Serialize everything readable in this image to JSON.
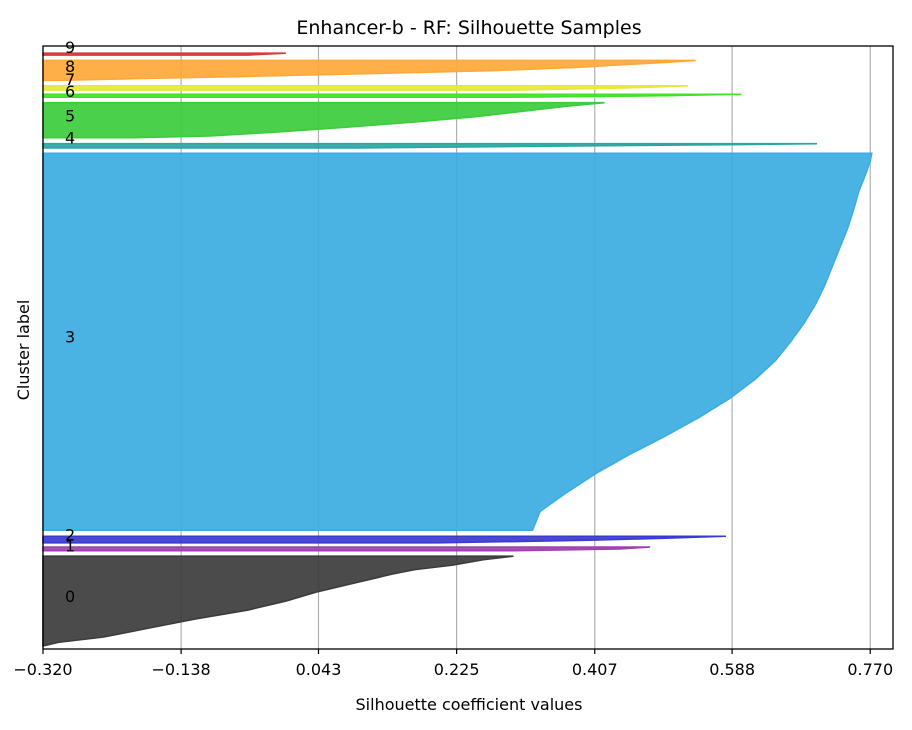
{
  "chart_data": {
    "type": "area",
    "title": "Enhancer-b - RF: Silhouette Samples",
    "xlabel": "Silhouette coefficient values",
    "ylabel": "Cluster label",
    "xlim": [
      -0.32,
      0.8
    ],
    "ylim": [
      0,
      100
    ],
    "xticks": [
      -0.32,
      -0.138,
      0.043,
      0.225,
      0.407,
      0.588,
      0.77
    ],
    "xtick_labels": [
      "−0.320",
      "−0.138",
      "0.043",
      "0.225",
      "0.407",
      "0.588",
      "0.770"
    ],
    "x_grid": true,
    "colors": {
      "0": "#3c3c3c",
      "1": "#a040b0",
      "2": "#3a3ad0",
      "3": "#3badE2",
      "4": "#2aa8a0",
      "5": "#3ccc3c",
      "6": "#44e02c",
      "7": "#e8e83c",
      "8": "#ffa838",
      "9": "#d83a3a"
    },
    "clusters": [
      {
        "label": "0",
        "y_lower": 0.5,
        "y_upper": 15.4,
        "max": 0.3,
        "profile": [
          [
            0.0,
            0.3
          ],
          [
            0.04,
            0.26
          ],
          [
            0.1,
            0.22
          ],
          [
            0.15,
            0.17
          ],
          [
            0.2,
            0.14
          ],
          [
            0.3,
            0.09
          ],
          [
            0.4,
            0.04
          ],
          [
            0.5,
            0.0
          ],
          [
            0.6,
            -0.05
          ],
          [
            0.7,
            -0.12
          ],
          [
            0.8,
            -0.18
          ],
          [
            0.9,
            -0.24
          ],
          [
            0.96,
            -0.3
          ],
          [
            1.0,
            -0.32
          ]
        ]
      },
      {
        "label": "1",
        "y_lower": 16.3,
        "y_upper": 16.9,
        "max": 0.48,
        "profile": [
          [
            0.0,
            0.48
          ],
          [
            0.5,
            0.44
          ],
          [
            1.0,
            0.3
          ]
        ]
      },
      {
        "label": "2",
        "y_lower": 17.6,
        "y_upper": 18.7,
        "max": 0.58,
        "profile": [
          [
            0.0,
            0.58
          ],
          [
            0.3,
            0.5
          ],
          [
            0.6,
            0.4
          ],
          [
            1.0,
            0.2
          ]
        ]
      },
      {
        "label": "3",
        "y_lower": 19.7,
        "y_upper": 82.2,
        "max": 0.772,
        "profile": [
          [
            0.0,
            0.772
          ],
          [
            0.02,
            0.77
          ],
          [
            0.05,
            0.765
          ],
          [
            0.1,
            0.755
          ],
          [
            0.15,
            0.748
          ],
          [
            0.2,
            0.74
          ],
          [
            0.25,
            0.73
          ],
          [
            0.3,
            0.72
          ],
          [
            0.35,
            0.71
          ],
          [
            0.4,
            0.698
          ],
          [
            0.45,
            0.683
          ],
          [
            0.5,
            0.665
          ],
          [
            0.55,
            0.645
          ],
          [
            0.6,
            0.618
          ],
          [
            0.65,
            0.585
          ],
          [
            0.7,
            0.545
          ],
          [
            0.75,
            0.5
          ],
          [
            0.8,
            0.452
          ],
          [
            0.85,
            0.408
          ],
          [
            0.9,
            0.37
          ],
          [
            0.95,
            0.335
          ],
          [
            1.0,
            0.325
          ]
        ]
      },
      {
        "label": "4",
        "y_lower": 83.1,
        "y_upper": 83.8,
        "max": 0.7,
        "profile": [
          [
            0.0,
            0.7
          ],
          [
            0.2,
            0.6
          ],
          [
            0.5,
            0.4
          ],
          [
            1.0,
            0.1
          ]
        ]
      },
      {
        "label": "5",
        "y_lower": 84.8,
        "y_upper": 90.6,
        "max": 0.42,
        "profile": [
          [
            0.0,
            0.42
          ],
          [
            0.1,
            0.37
          ],
          [
            0.25,
            0.31
          ],
          [
            0.4,
            0.25
          ],
          [
            0.55,
            0.17
          ],
          [
            0.7,
            0.08
          ],
          [
            0.85,
            -0.02
          ],
          [
            0.95,
            -0.1
          ],
          [
            1.0,
            -0.2
          ]
        ]
      },
      {
        "label": "6",
        "y_lower": 91.5,
        "y_upper": 92.0,
        "max": 0.6,
        "profile": [
          [
            0.0,
            0.6
          ],
          [
            0.5,
            0.5
          ],
          [
            1.0,
            0.3
          ]
        ]
      },
      {
        "label": "7",
        "y_lower": 92.7,
        "y_upper": 93.4,
        "max": 0.53,
        "profile": [
          [
            0.0,
            0.53
          ],
          [
            0.5,
            0.45
          ],
          [
            1.0,
            0.3
          ]
        ]
      },
      {
        "label": "8",
        "y_lower": 94.3,
        "y_upper": 97.6,
        "max": 0.54,
        "profile": [
          [
            0.0,
            0.54
          ],
          [
            0.1,
            0.5
          ],
          [
            0.2,
            0.45
          ],
          [
            0.35,
            0.38
          ],
          [
            0.5,
            0.28
          ],
          [
            0.65,
            0.12
          ],
          [
            0.8,
            -0.05
          ],
          [
            0.9,
            -0.18
          ],
          [
            1.0,
            -0.3
          ]
        ]
      },
      {
        "label": "9",
        "y_lower": 98.5,
        "y_upper": 98.8,
        "max": 0.0,
        "profile": [
          [
            0.0,
            0.0
          ],
          [
            1.0,
            -0.05
          ]
        ]
      }
    ],
    "cluster_label_positions": [
      {
        "label": "0",
        "y": 8.8
      },
      {
        "label": "1",
        "y": 17.2
      },
      {
        "label": "2",
        "y": 19.0
      },
      {
        "label": "3",
        "y": 51.8
      },
      {
        "label": "4",
        "y": 84.8
      },
      {
        "label": "5",
        "y": 88.5
      },
      {
        "label": "6",
        "y": 92.5
      },
      {
        "label": "7",
        "y": 94.5
      },
      {
        "label": "8",
        "y": 96.7
      },
      {
        "label": "9",
        "y": 99.8
      }
    ]
  }
}
